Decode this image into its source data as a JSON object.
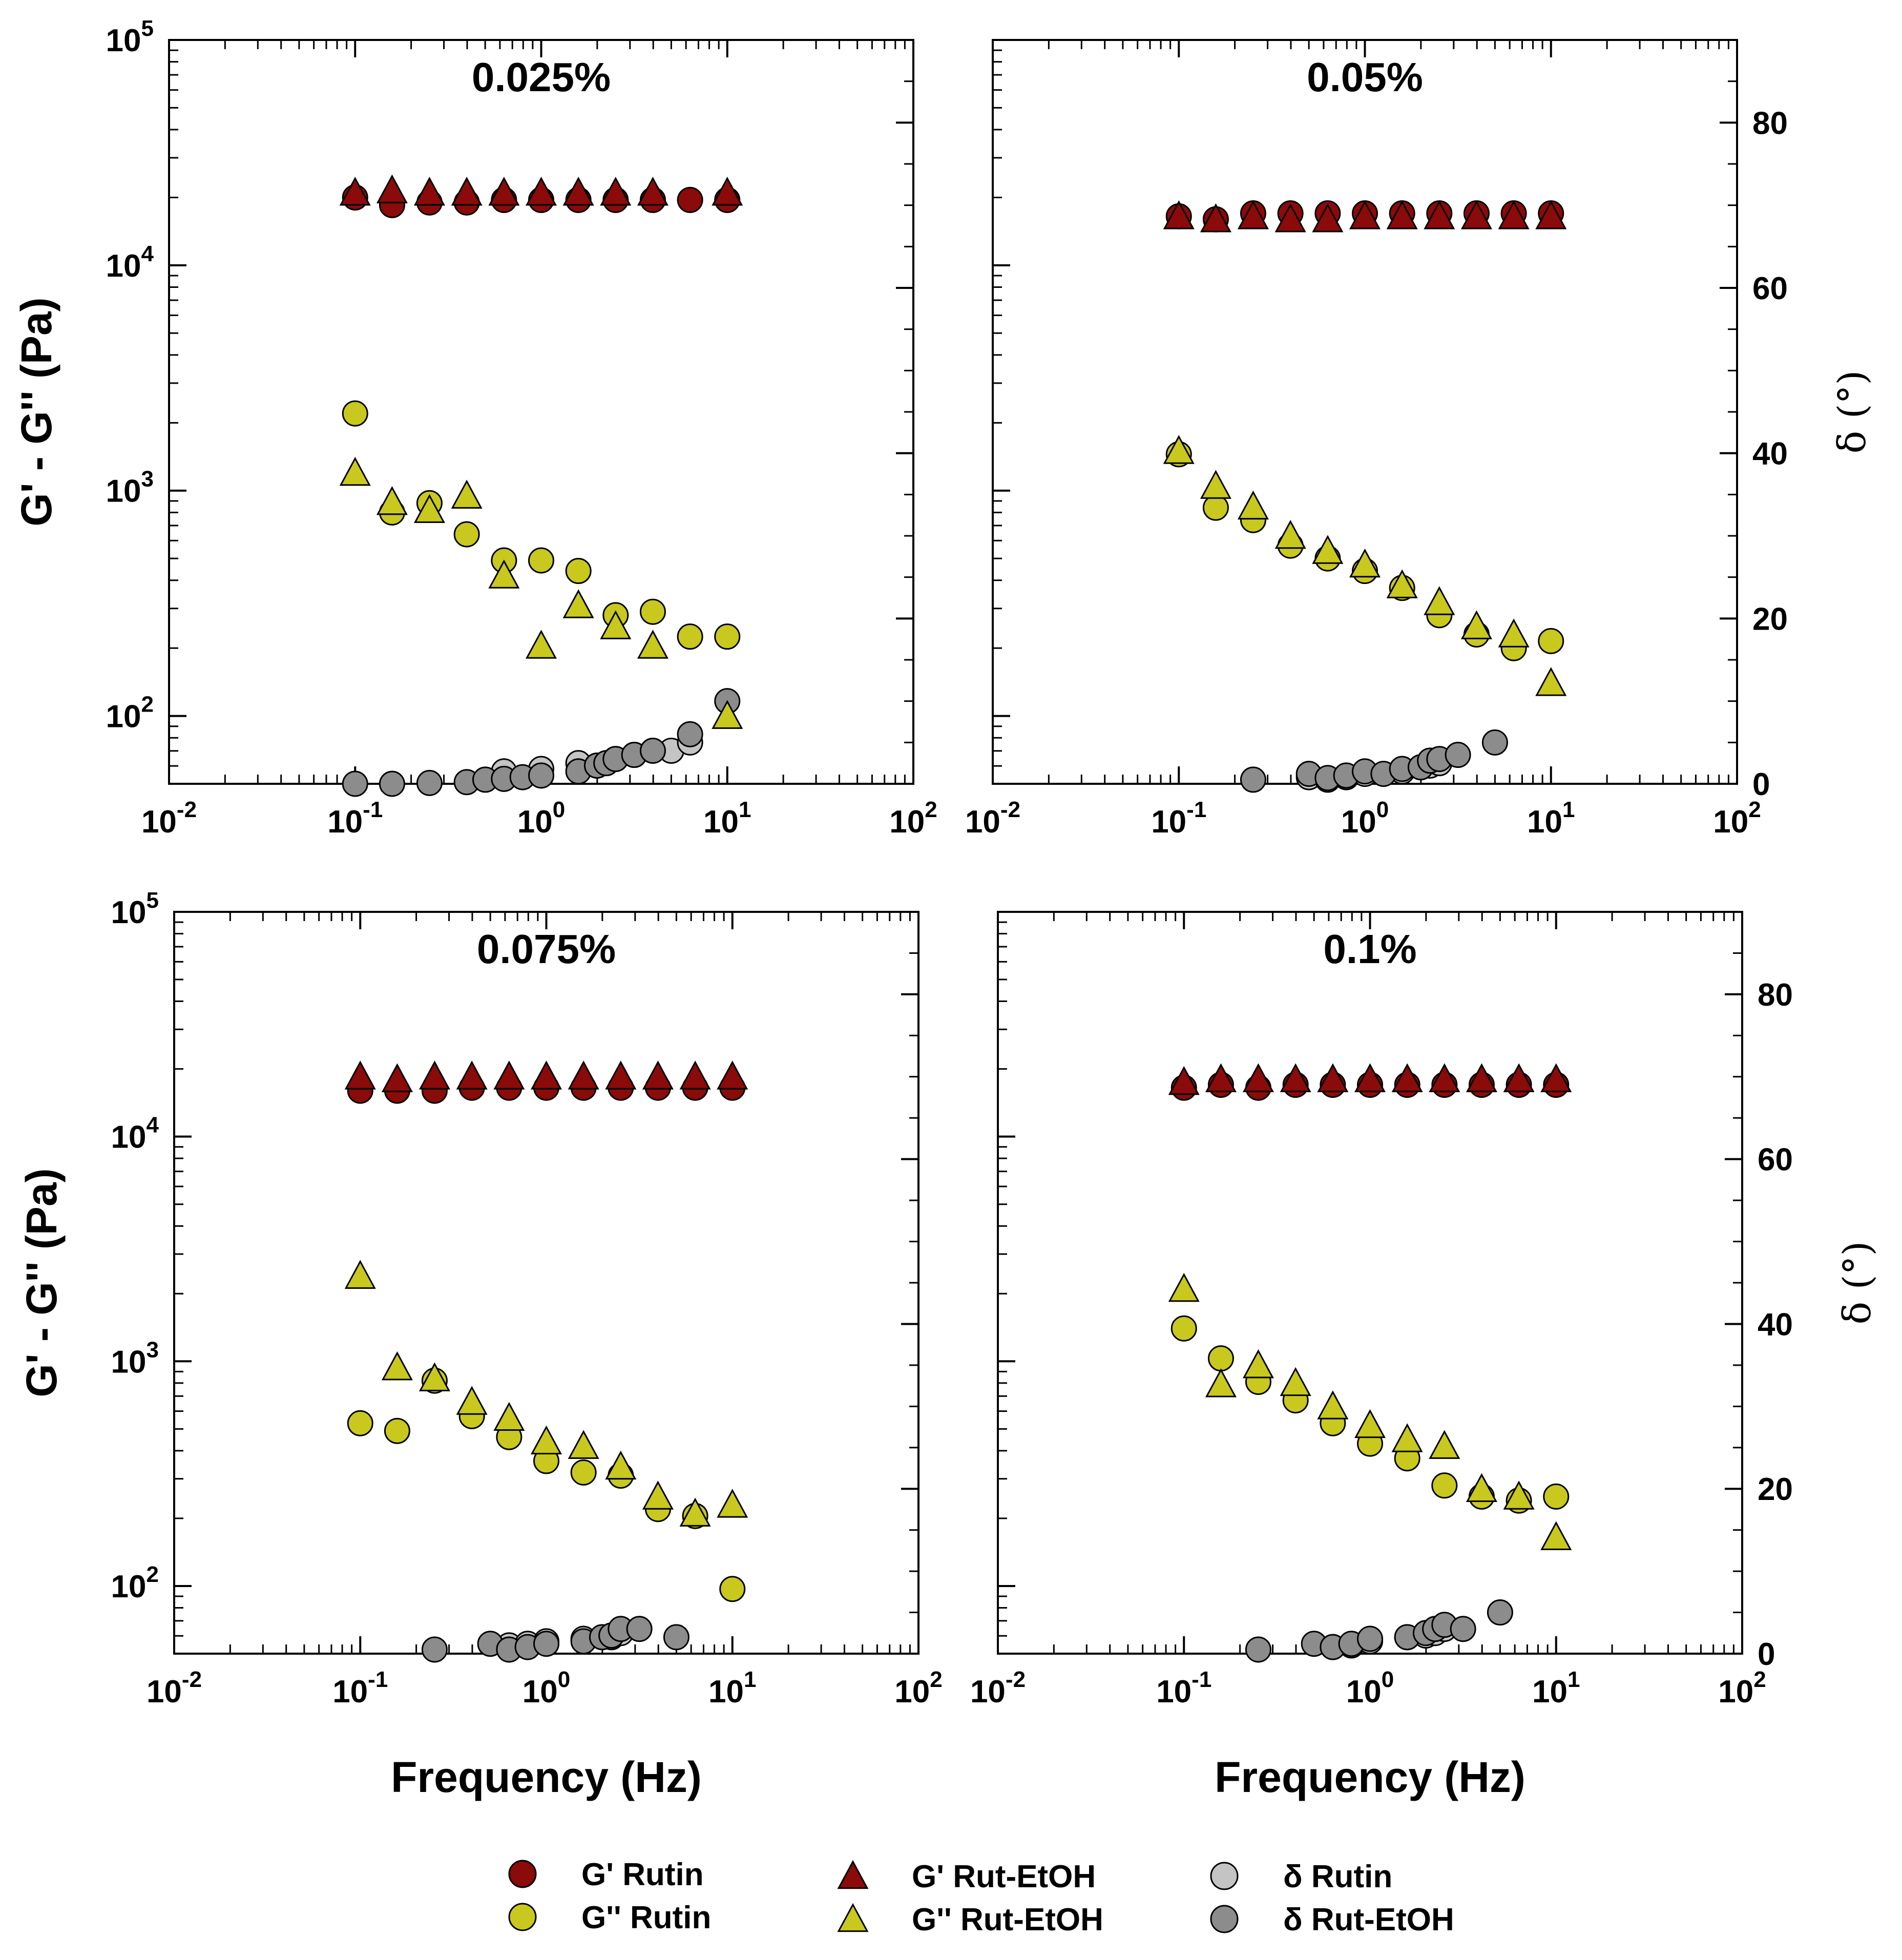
{
  "chart_data": [
    {
      "type": "scatter",
      "title": "0.025%",
      "xlabel": "Frequency (Hz)",
      "ylabel": "G' - G'' (Pa)",
      "y2label": "δ (°)",
      "xscale": "log",
      "xlim": [
        0.01,
        100
      ],
      "yscale": "log",
      "ylim": [
        50,
        100000
      ],
      "y2lim": [
        0,
        90
      ],
      "x_ticks": [
        "10-2",
        "10-1",
        "100",
        "101",
        "102"
      ],
      "y_ticks": [
        "102",
        "103",
        "104",
        "105"
      ],
      "y2_ticks": [
        "20",
        "40",
        "60",
        "80"
      ],
      "series": [
        {
          "name": "G' Rutin",
          "marker": "circle",
          "color": "#8b0a0a",
          "axis": "left",
          "x": [
            0.1,
            0.158,
            0.251,
            0.398,
            0.631,
            1.0,
            1.585,
            2.512,
            3.981,
            6.31,
            10.0
          ],
          "values": [
            20000,
            18500,
            19000,
            19000,
            19500,
            19500,
            19500,
            19500,
            19500,
            19500,
            19500
          ]
        },
        {
          "name": "G' Rut-EtOH",
          "marker": "triangle",
          "color": "#8b0a0a",
          "axis": "left",
          "x": [
            0.1,
            0.158,
            0.251,
            0.398,
            0.631,
            1.0,
            1.585,
            2.512,
            3.981,
            10.0
          ],
          "values": [
            21000,
            21500,
            21000,
            21000,
            21000,
            21000,
            21000,
            21000,
            21000,
            21000
          ]
        },
        {
          "name": "G'' Rutin",
          "marker": "circle",
          "color": "#c8c81e",
          "axis": "left",
          "x": [
            0.1,
            0.158,
            0.251,
            0.398,
            0.631,
            1.0,
            1.585,
            2.512,
            3.981,
            6.31,
            10.0
          ],
          "values": [
            2200,
            800,
            880,
            640,
            490,
            490,
            440,
            280,
            290,
            225,
            225
          ]
        },
        {
          "name": "G'' Rut-EtOH",
          "marker": "triangle",
          "color": "#c8c81e",
          "axis": "left",
          "x": [
            0.1,
            0.158,
            0.251,
            0.398,
            0.631,
            1.0,
            1.585,
            2.512,
            3.981,
            10.0
          ],
          "values": [
            1200,
            890,
            820,
            950,
            420,
            205,
            310,
            250,
            205,
            100
          ]
        },
        {
          "name": "δ Rutin",
          "marker": "circle",
          "color": "#c4c4c4",
          "axis": "right",
          "x": [
            0.631,
            1.0,
            1.585,
            1.995,
            2.512,
            3.162,
            5.0,
            6.31
          ],
          "values": [
            1.5,
            1.8,
            2.5,
            2.2,
            3.0,
            3.5,
            4.0,
            5.0
          ]
        },
        {
          "name": "δ Rut-EtOH",
          "marker": "circle",
          "color": "#8c8c8c",
          "axis": "right",
          "x": [
            0.1,
            0.158,
            0.251,
            0.398,
            0.501,
            0.631,
            0.794,
            1.0,
            1.585,
            1.995,
            2.239,
            2.512,
            3.162,
            3.981,
            6.31,
            10.0
          ],
          "values": [
            0.0,
            0.0,
            0.1,
            0.2,
            0.5,
            0.6,
            0.8,
            1.0,
            1.5,
            2.2,
            2.5,
            3.0,
            3.5,
            4.0,
            6.0,
            10.0
          ]
        }
      ]
    },
    {
      "type": "scatter",
      "title": "0.05%",
      "xlabel": "Frequency (Hz)",
      "ylabel": "G' - G'' (Pa)",
      "y2label": "δ (°)",
      "xscale": "log",
      "xlim": [
        0.01,
        100
      ],
      "yscale": "log",
      "ylim": [
        50,
        100000
      ],
      "y2lim": [
        0,
        90
      ],
      "x_ticks": [
        "10-2",
        "10-1",
        "100",
        "101",
        "102"
      ],
      "y_ticks": [
        "102",
        "103",
        "104",
        "105"
      ],
      "y2_ticks": [
        "20",
        "40",
        "60",
        "80"
      ],
      "series": [
        {
          "name": "G' Rutin",
          "marker": "circle",
          "color": "#8b0a0a",
          "axis": "left",
          "x": [
            0.1,
            0.158,
            0.251,
            0.398,
            0.631,
            1.0,
            1.585,
            2.512,
            3.981,
            6.31,
            10.0
          ],
          "values": [
            16500,
            16000,
            17000,
            17000,
            17000,
            17000,
            17000,
            17000,
            17000,
            17000,
            17000
          ]
        },
        {
          "name": "G' Rut-EtOH",
          "marker": "triangle",
          "color": "#8b0a0a",
          "axis": "left",
          "x": [
            0.1,
            0.158,
            0.251,
            0.398,
            0.631,
            1.0,
            1.585,
            2.512,
            3.981,
            6.31,
            10.0
          ],
          "values": [
            16500,
            16000,
            16500,
            16000,
            16000,
            16500,
            16500,
            16500,
            16500,
            16500,
            16500
          ]
        },
        {
          "name": "G'' Rutin",
          "marker": "circle",
          "color": "#c8c81e",
          "axis": "left",
          "x": [
            0.1,
            0.158,
            0.251,
            0.398,
            0.631,
            1.0,
            1.585,
            2.512,
            3.981,
            6.31,
            10.0
          ],
          "values": [
            1450,
            840,
            740,
            570,
            500,
            440,
            370,
            280,
            230,
            200,
            215
          ]
        },
        {
          "name": "G'' Rut-EtOH",
          "marker": "triangle",
          "color": "#c8c81e",
          "axis": "left",
          "x": [
            0.1,
            0.158,
            0.251,
            0.398,
            0.631,
            1.0,
            1.585,
            2.512,
            3.981,
            6.31,
            10.0
          ],
          "values": [
            1500,
            1050,
            850,
            630,
            540,
            470,
            380,
            320,
            250,
            230,
            140
          ]
        },
        {
          "name": "δ Rutin",
          "marker": "circle",
          "color": "#c4c4c4",
          "axis": "right",
          "x": [
            0.5,
            0.631,
            0.794,
            1.0,
            1.585,
            1.995,
            2.239,
            2.512
          ],
          "values": [
            0.8,
            0.5,
            0.8,
            1.2,
            1.5,
            2.0,
            2.2,
            2.5
          ]
        },
        {
          "name": "δ Rut-EtOH",
          "marker": "circle",
          "color": "#8c8c8c",
          "axis": "right",
          "x": [
            0.251,
            0.5,
            0.631,
            0.794,
            1.0,
            1.259,
            1.585,
            1.995,
            2.239,
            2.512,
            3.162,
            5.0
          ],
          "values": [
            0.5,
            1.2,
            0.7,
            1.0,
            1.5,
            1.2,
            1.8,
            2.0,
            2.8,
            3.0,
            3.5,
            5.0
          ]
        }
      ]
    },
    {
      "type": "scatter",
      "title": "0.075%",
      "xlabel": "Frequency (Hz)",
      "ylabel": "G' - G'' (Pa)",
      "y2label": "δ (°)",
      "xscale": "log",
      "xlim": [
        0.01,
        100
      ],
      "yscale": "log",
      "ylim": [
        50,
        100000
      ],
      "y2lim": [
        0,
        90
      ],
      "x_ticks": [
        "10-2",
        "10-1",
        "100",
        "101",
        "102"
      ],
      "y_ticks": [
        "102",
        "103",
        "104",
        "105"
      ],
      "y2_ticks": [
        "20",
        "40",
        "60",
        "80"
      ],
      "series": [
        {
          "name": "G' Rutin",
          "marker": "circle",
          "color": "#8b0a0a",
          "axis": "left",
          "x": [
            0.1,
            0.158,
            0.251,
            0.398,
            0.631,
            1.0,
            1.585,
            2.512,
            3.981,
            6.31,
            10.0
          ],
          "values": [
            16000,
            16000,
            16000,
            16500,
            16500,
            16500,
            16500,
            16500,
            16500,
            16500,
            16500
          ]
        },
        {
          "name": "G' Rut-EtOH",
          "marker": "triangle",
          "color": "#8b0a0a",
          "axis": "left",
          "x": [
            0.1,
            0.158,
            0.251,
            0.398,
            0.631,
            1.0,
            1.585,
            2.512,
            3.981,
            6.31,
            10.0
          ],
          "values": [
            18500,
            18000,
            18500,
            18500,
            18500,
            18500,
            18500,
            18500,
            18500,
            18500,
            18500
          ]
        },
        {
          "name": "G'' Rutin",
          "marker": "circle",
          "color": "#c8c81e",
          "axis": "left",
          "x": [
            0.1,
            0.158,
            0.251,
            0.398,
            0.631,
            1.0,
            1.585,
            2.512,
            3.981,
            6.31,
            10.0
          ],
          "values": [
            530,
            490,
            820,
            570,
            460,
            360,
            320,
            310,
            220,
            205,
            97
          ]
        },
        {
          "name": "G'' Rut-EtOH",
          "marker": "triangle",
          "color": "#c8c81e",
          "axis": "left",
          "x": [
            0.1,
            0.158,
            0.251,
            0.398,
            0.631,
            1.0,
            1.585,
            2.512,
            3.981,
            6.31,
            10.0
          ],
          "values": [
            2400,
            940,
            840,
            660,
            560,
            440,
            420,
            340,
            250,
            210,
            230
          ]
        },
        {
          "name": "δ Rutin",
          "marker": "circle",
          "color": "#c4c4c4",
          "axis": "right",
          "x": [
            0.631,
            0.794,
            1.0,
            1.585,
            2.239,
            2.512
          ],
          "values": [
            1.0,
            1.2,
            1.5,
            1.8,
            2.0,
            2.5
          ]
        },
        {
          "name": "δ Rut-EtOH",
          "marker": "circle",
          "color": "#8c8c8c",
          "axis": "right",
          "x": [
            0.251,
            0.5,
            0.631,
            0.794,
            1.0,
            1.585,
            1.995,
            2.239,
            2.512,
            3.162,
            5.0
          ],
          "values": [
            0.5,
            1.2,
            0.5,
            0.8,
            1.2,
            1.5,
            2.0,
            2.2,
            3.0,
            3.0,
            2.0
          ]
        }
      ]
    },
    {
      "type": "scatter",
      "title": "0.1%",
      "xlabel": "Frequency (Hz)",
      "ylabel": "G' - G'' (Pa)",
      "y2label": "δ (°)",
      "xscale": "log",
      "xlim": [
        0.01,
        100
      ],
      "yscale": "log",
      "ylim": [
        50,
        100000
      ],
      "y2lim": [
        0,
        90
      ],
      "x_ticks": [
        "10-2",
        "10-1",
        "100",
        "101",
        "102"
      ],
      "y_ticks": [
        "102",
        "103",
        "104",
        "105"
      ],
      "y2_ticks": [
        "20",
        "40",
        "60",
        "80"
      ],
      "series": [
        {
          "name": "G' Rutin",
          "marker": "circle",
          "color": "#8b0a0a",
          "axis": "left",
          "x": [
            0.1,
            0.158,
            0.251,
            0.398,
            0.631,
            1.0,
            1.585,
            2.512,
            3.981,
            6.31,
            10.0
          ],
          "values": [
            16500,
            17000,
            16500,
            17000,
            17000,
            17000,
            17000,
            17000,
            17000,
            17000,
            17000
          ]
        },
        {
          "name": "G' Rut-EtOH",
          "marker": "triangle",
          "color": "#8b0a0a",
          "axis": "left",
          "x": [
            0.1,
            0.158,
            0.251,
            0.398,
            0.631,
            1.0,
            1.585,
            2.512,
            3.981,
            6.31,
            10.0
          ],
          "values": [
            17500,
            18000,
            18000,
            18000,
            18000,
            18000,
            18000,
            18000,
            18000,
            18000,
            18000
          ]
        },
        {
          "name": "G'' Rutin",
          "marker": "circle",
          "color": "#c8c81e",
          "axis": "left",
          "x": [
            0.1,
            0.158,
            0.251,
            0.398,
            0.631,
            1.0,
            1.585,
            2.512,
            3.981,
            6.31,
            10.0
          ],
          "values": [
            1400,
            1030,
            810,
            670,
            530,
            430,
            370,
            280,
            250,
            240,
            250
          ]
        },
        {
          "name": "G'' Rut-EtOH",
          "marker": "triangle",
          "color": "#c8c81e",
          "axis": "left",
          "x": [
            0.1,
            0.158,
            0.251,
            0.398,
            0.631,
            1.0,
            1.585,
            2.512,
            3.981,
            6.31,
            10.0
          ],
          "values": [
            2100,
            790,
            960,
            800,
            630,
            520,
            450,
            420,
            270,
            250,
            165
          ]
        },
        {
          "name": "δ Rutin",
          "marker": "circle",
          "color": "#c4c4c4",
          "axis": "right",
          "x": [
            0.631,
            0.794,
            1.0,
            1.585,
            1.995,
            2.239,
            2.512
          ],
          "values": [
            0.8,
            1.0,
            1.5,
            2.0,
            2.2,
            2.5,
            3.0
          ]
        },
        {
          "name": "δ Rut-EtOH",
          "marker": "circle",
          "color": "#8c8c8c",
          "axis": "right",
          "x": [
            0.251,
            0.5,
            0.631,
            0.794,
            1.0,
            1.585,
            1.995,
            2.239,
            2.512,
            3.162,
            5.0
          ],
          "values": [
            0.5,
            1.2,
            0.8,
            1.2,
            1.8,
            2.0,
            2.5,
            3.0,
            3.5,
            3.0,
            5.0
          ]
        }
      ]
    }
  ],
  "legend": [
    {
      "label": "G' Rutin",
      "marker": "circle",
      "color": "#8b0a0a"
    },
    {
      "label": "G'' Rutin",
      "marker": "circle",
      "color": "#c8c81e"
    },
    {
      "label": "G' Rut-EtOH",
      "marker": "triangle",
      "color": "#8b0a0a"
    },
    {
      "label": "G'' Rut-EtOH",
      "marker": "triangle",
      "color": "#c8c81e"
    },
    {
      "label": "δ Rutin",
      "marker": "circle",
      "color": "#c4c4c4"
    },
    {
      "label": "δ Rut-EtOH",
      "marker": "circle",
      "color": "#8c8c8c"
    }
  ]
}
